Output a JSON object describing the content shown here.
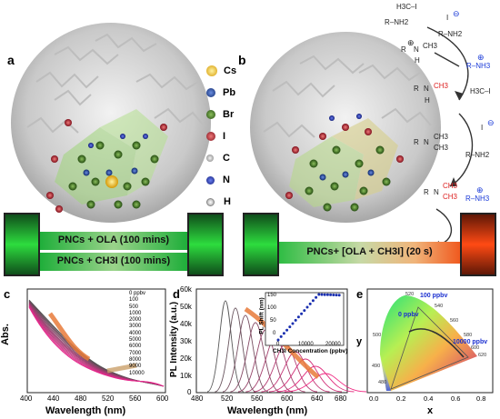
{
  "panel_letters": {
    "a": "a",
    "b": "b",
    "c": "c",
    "d": "d",
    "e": "e"
  },
  "legend": [
    {
      "symbol": "Cs",
      "color": "#e6b21f"
    },
    {
      "symbol": "Pb",
      "color": "#1f3f8f"
    },
    {
      "symbol": "Br",
      "color": "#3b6a1f"
    },
    {
      "symbol": "I",
      "color": "#b0182a"
    },
    {
      "symbol": "C",
      "color": "#9a9a9a"
    },
    {
      "symbol": "N",
      "color": "#1a2fa0"
    },
    {
      "symbol": "H",
      "color": "#d8d8d8"
    }
  ],
  "banners": {
    "line1": "PNCs + OLA (100 mins)",
    "line2": "PNCs + CH3I (100 mins)",
    "right": "PNCs+ [OLA + CH3I] (20 s)"
  },
  "reaction": {
    "ch3i": "H3C–I",
    "iodide": "I",
    "rnh2": "R–NH2",
    "rnh3": "R–NH3",
    "ch3": "CH3",
    "h": "H",
    "n": "N",
    "r": "R",
    "plus": "⊕",
    "minus": "⊖"
  },
  "panel_c": {
    "ylabel": "Abs.",
    "xlabel": "Wavelength (nm)",
    "xticks": [
      "400",
      "440",
      "480",
      "520",
      "560",
      "600"
    ],
    "legend": [
      "0 ppbv",
      "100",
      "500",
      "1000",
      "2000",
      "3000",
      "4000",
      "5000",
      "6000",
      "7000",
      "8000",
      "9000",
      "10000"
    ]
  },
  "panel_d": {
    "ylabel": "PL Intensity (a.u.)",
    "xlabel": "Wavelength (nm)",
    "yticks": [
      "0",
      "10k",
      "20k",
      "30k",
      "40k",
      "50k",
      "60k"
    ],
    "xticks": [
      "480",
      "520",
      "560",
      "600",
      "640",
      "680"
    ],
    "inset": {
      "ylabel": "PL Shift (nm)",
      "xlabel": "CH3I Concentration (ppbv)",
      "yticks": [
        "0",
        "50",
        "100",
        "150"
      ],
      "xticks": [
        "0",
        "10000",
        "20000"
      ]
    }
  },
  "panel_e": {
    "ylabel": "y",
    "xlabel": "x",
    "xticks": [
      "0.0",
      "0.2",
      "0.4",
      "0.6",
      "0.8"
    ],
    "yticks": [
      "0.0",
      "0.2",
      "0.4",
      "0.6",
      "0.8"
    ],
    "labels": [
      "100 ppbv",
      "0 ppbv",
      "10000 ppbv"
    ],
    "wavelengths": [
      "520",
      "540",
      "560",
      "580",
      "600",
      "620",
      "500",
      "490",
      "480"
    ]
  }
}
